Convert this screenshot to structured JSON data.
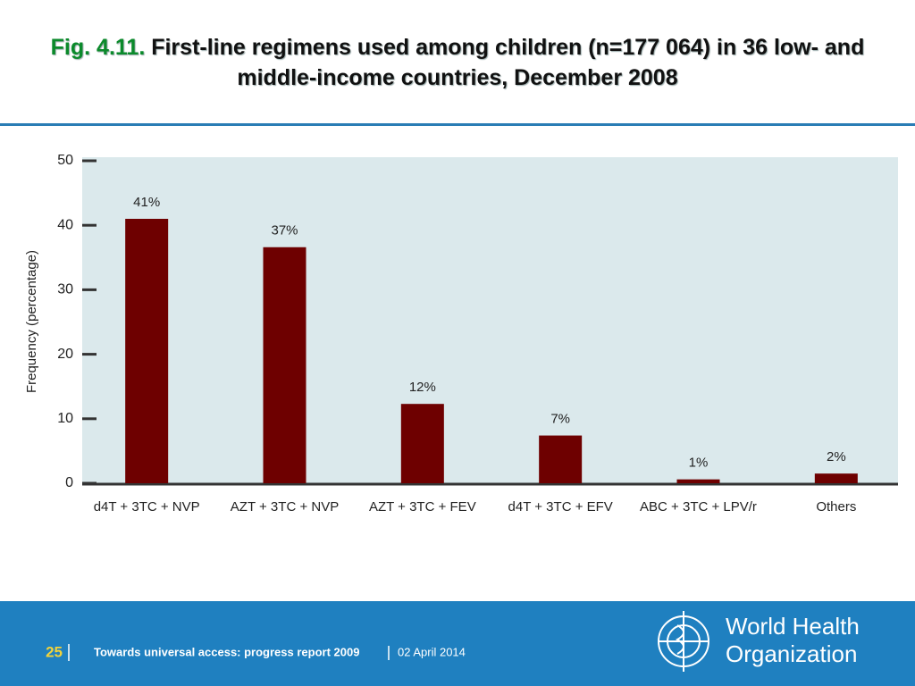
{
  "chart_data": {
    "type": "bar",
    "figure_label": "Fig. 4.11.",
    "title": "First-line regimens used among children (n=177 064) in 36 low- and middle-income countries, December 2008",
    "y_label": "Frequency (percentage)",
    "categories": [
      "d4T + 3TC + NVP",
      "AZT + 3TC + NVP",
      "AZT + 3TC + FEV",
      "d4T + 3TC + EFV",
      "ABC + 3TC + LPV/r",
      "Others"
    ],
    "values": [
      41,
      36.6,
      12.3,
      7.4,
      0.6,
      1.5
    ],
    "value_labels": [
      "41%",
      "37%",
      "12%",
      "7%",
      "1%",
      "2%"
    ],
    "color": "#6e0000",
    "ylim": [
      0,
      50
    ],
    "yticks": [
      0,
      10,
      20,
      30,
      40,
      50
    ],
    "grid": false
  },
  "footer": {
    "page": "25",
    "text": "Towards universal access: progress report 2009",
    "date": "02 April 2014"
  },
  "logo": {
    "line1": "World Health",
    "line2": "Organization"
  }
}
